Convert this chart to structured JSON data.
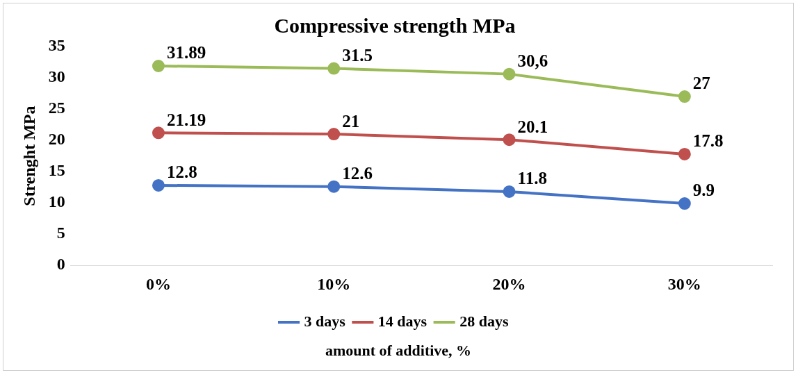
{
  "chart_data": {
    "type": "line",
    "title": "Compressive strength MPa",
    "xlabel": "amount of additive, %",
    "ylabel": "Strenght MPa",
    "categories": [
      "0%",
      "10%",
      "20%",
      "30%"
    ],
    "series": [
      {
        "name": "3 days",
        "color": "#4472c4",
        "values": [
          12.8,
          12.6,
          11.8,
          9.9
        ],
        "value_labels": [
          "12.8",
          "12.6",
          "11.8",
          "9.9"
        ]
      },
      {
        "name": "14 days",
        "color": "#c0504d",
        "values": [
          21.19,
          21,
          20.1,
          17.8
        ],
        "value_labels": [
          "21.19",
          "21",
          "20.1",
          "17.8"
        ]
      },
      {
        "name": "28 days",
        "color": "#9bbb59",
        "values": [
          31.89,
          31.5,
          30.6,
          27
        ],
        "value_labels": [
          "31.89",
          "31.5",
          "30,6",
          "27"
        ]
      }
    ],
    "ylim": [
      0,
      35
    ],
    "yticks": [
      0,
      5,
      10,
      15,
      20,
      25,
      30,
      35
    ],
    "grid": false,
    "legend": "bottom",
    "marker": "circle",
    "line_style": "solid"
  }
}
